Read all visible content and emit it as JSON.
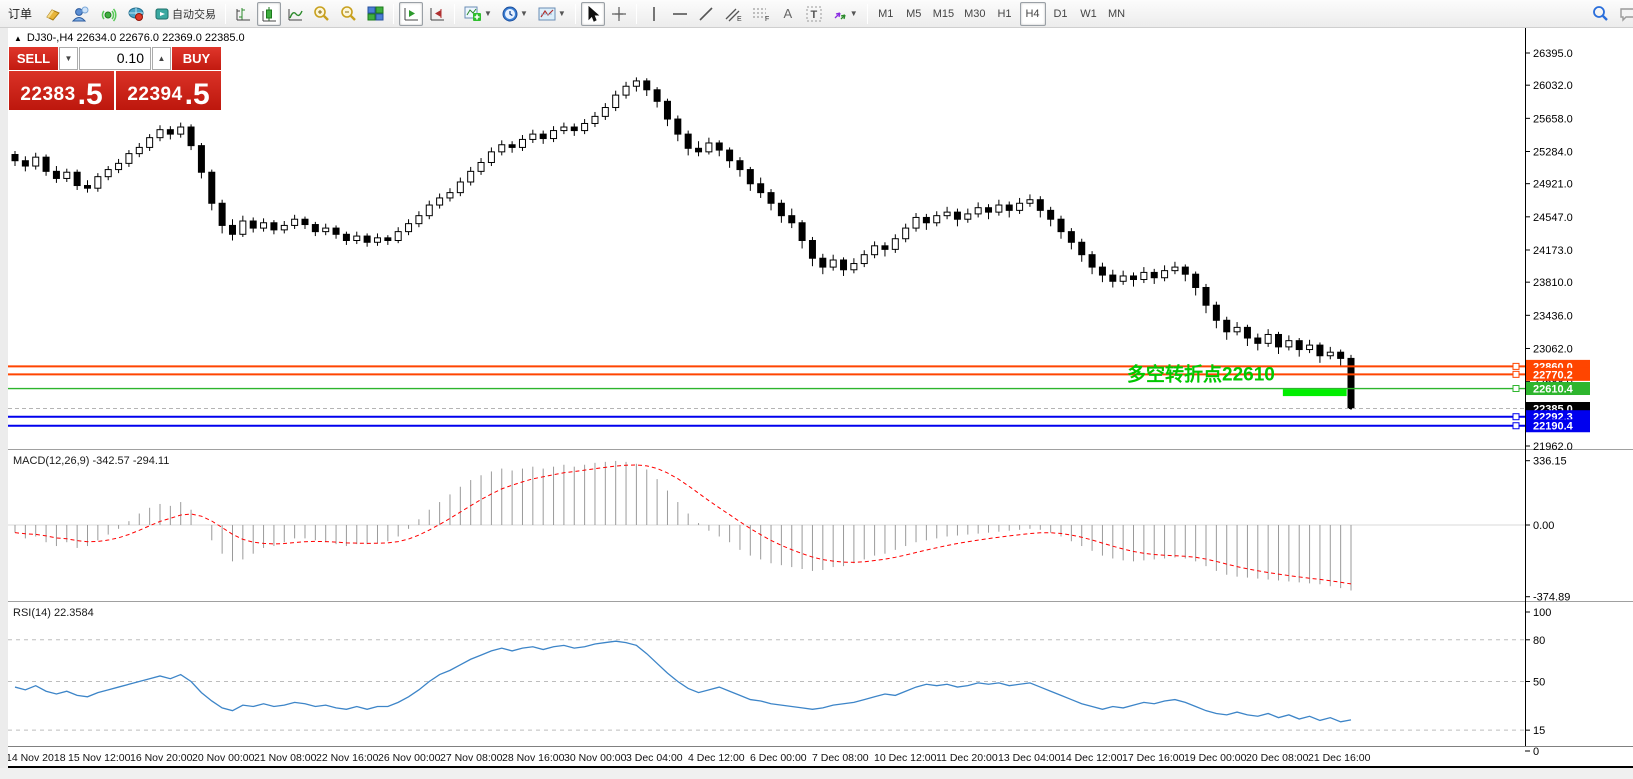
{
  "toolbar": {
    "order_label": "订单",
    "autotrading_label": "自动交易",
    "timeframes": [
      "M1",
      "M5",
      "M15",
      "M30",
      "H1",
      "H4",
      "D1",
      "W1",
      "MN"
    ],
    "active_timeframe": "H4"
  },
  "chart": {
    "header": "DJ30-,H4  22634.0 22676.0 22369.0 22385.0",
    "collapse_arrow": "▲"
  },
  "trade_panel": {
    "sell_label": "SELL",
    "buy_label": "BUY",
    "volume": "0.10",
    "spin_down": "▼",
    "spin_up": "▲",
    "sell_price_main": "22383",
    "sell_price_frac": ".5",
    "buy_price_main": "22394",
    "buy_price_frac": ".5"
  },
  "annotation": {
    "text": "多空转折点22610",
    "color": "#00c800"
  },
  "levels": [
    {
      "label": "22860.0",
      "value": 22860.0,
      "color": "#ff4500",
      "dash": null,
      "width": 2,
      "handle": true
    },
    {
      "label": "22770.2",
      "value": 22770.2,
      "color": "#ff4500",
      "dash": null,
      "width": 2,
      "handle": true
    },
    {
      "label": "22610.4",
      "value": 22610.4,
      "color": "#2db52d",
      "dash": null,
      "width": 1.4,
      "handle": true
    },
    {
      "label": "22385.0",
      "value": 22385.0,
      "color": "#000000",
      "dash": "4 3",
      "width": 1,
      "handle": false,
      "line_color": "#b4b4b4"
    },
    {
      "label": "22292.3",
      "value": 22292.3,
      "color": "#0000ee",
      "dash": null,
      "width": 2,
      "handle": true
    },
    {
      "label": "22190.4",
      "value": 22190.4,
      "color": "#0000ee",
      "dash": null,
      "width": 2,
      "handle": true
    }
  ],
  "highlight_segment": {
    "price": 22570,
    "from_bar": 123,
    "to_bar": 128,
    "color": "#00ee00"
  },
  "price_axis_ticks": [
    26395.0,
    26032.0,
    25658.0,
    25284.0,
    24921.0,
    24547.0,
    24173.0,
    23810.0,
    23436.0,
    23062.0,
    22688.0,
    22314.0,
    21962.0
  ],
  "macd_panel": {
    "label": "MACD(12,26,9) -342.57 -294.11",
    "axis_ticks": [
      336.15,
      0.0,
      -374.89
    ]
  },
  "rsi_panel": {
    "label": "RSI(14) 22.3584",
    "axis_ticks": [
      100,
      80,
      50,
      15,
      0
    ],
    "level_lines": [
      80,
      50,
      15
    ]
  },
  "time_axis": [
    "14 Nov 2018",
    "15 Nov 12:00",
    "16 Nov 20:00",
    "20 Nov 00:00",
    "21 Nov 08:00",
    "22 Nov 16:00",
    "26 Nov 00:00",
    "27 Nov 08:00",
    "28 Nov 16:00",
    "30 Nov 00:00",
    "3 Dec 04:00",
    "4 Dec 12:00",
    "6 Dec 00:00",
    "7 Dec 08:00",
    "10 Dec 12:00",
    "11 Dec 20:00",
    "13 Dec 04:00",
    "14 Dec 12:00",
    "17 Dec 16:00",
    "19 Dec 00:00",
    "20 Dec 08:00",
    "21 Dec 16:00"
  ],
  "chart_data": [
    {
      "type": "candlestick",
      "title": "DJ30- H4",
      "ylim": [
        21894,
        26654
      ],
      "yticks": [
        26395.0,
        26032.0,
        25658.0,
        25284.0,
        24921.0,
        24547.0,
        24173.0,
        23810.0,
        23436.0,
        23062.0,
        22688.0,
        22314.0,
        21962.0
      ],
      "x_labels": [
        "14 Nov 2018",
        "15 Nov 12:00",
        "16 Nov 20:00",
        "20 Nov 00:00",
        "21 Nov 08:00",
        "22 Nov 16:00",
        "26 Nov 00:00",
        "27 Nov 08:00",
        "28 Nov 16:00",
        "30 Nov 00:00",
        "3 Dec 04:00",
        "4 Dec 12:00",
        "6 Dec 00:00",
        "7 Dec 08:00",
        "10 Dec 12:00",
        "11 Dec 20:00",
        "13 Dec 04:00",
        "14 Dec 12:00",
        "17 Dec 16:00",
        "19 Dec 00:00",
        "20 Dec 08:00",
        "21 Dec 16:00"
      ],
      "ohlc": [
        [
          25250,
          25290,
          25120,
          25180
        ],
        [
          25180,
          25230,
          25060,
          25120
        ],
        [
          25120,
          25270,
          25080,
          25220
        ],
        [
          25220,
          25250,
          25010,
          25060
        ],
        [
          25060,
          25120,
          24930,
          24980
        ],
        [
          24980,
          25090,
          24940,
          25050
        ],
        [
          25050,
          25080,
          24850,
          24900
        ],
        [
          24900,
          24960,
          24820,
          24870
        ],
        [
          24870,
          25040,
          24830,
          25000
        ],
        [
          25000,
          25120,
          24960,
          25080
        ],
        [
          25080,
          25200,
          25040,
          25150
        ],
        [
          25150,
          25300,
          25110,
          25260
        ],
        [
          25260,
          25380,
          25220,
          25330
        ],
        [
          25330,
          25480,
          25290,
          25440
        ],
        [
          25440,
          25580,
          25400,
          25530
        ],
        [
          25530,
          25570,
          25420,
          25480
        ],
        [
          25480,
          25610,
          25440,
          25560
        ],
        [
          25560,
          25590,
          25300,
          25350
        ],
        [
          25350,
          25380,
          24980,
          25050
        ],
        [
          25050,
          25080,
          24620,
          24700
        ],
        [
          24700,
          24740,
          24360,
          24450
        ],
        [
          24450,
          24520,
          24280,
          24350
        ],
        [
          24350,
          24560,
          24320,
          24500
        ],
        [
          24500,
          24540,
          24370,
          24420
        ],
        [
          24420,
          24530,
          24380,
          24480
        ],
        [
          24480,
          24510,
          24350,
          24400
        ],
        [
          24400,
          24500,
          24360,
          24450
        ],
        [
          24450,
          24570,
          24410,
          24520
        ],
        [
          24520,
          24550,
          24410,
          24460
        ],
        [
          24460,
          24490,
          24330,
          24380
        ],
        [
          24380,
          24470,
          24340,
          24420
        ],
        [
          24420,
          24450,
          24300,
          24350
        ],
        [
          24350,
          24380,
          24230,
          24280
        ],
        [
          24280,
          24380,
          24240,
          24330
        ],
        [
          24330,
          24360,
          24210,
          24260
        ],
        [
          24260,
          24360,
          24220,
          24310
        ],
        [
          24310,
          24340,
          24230,
          24280
        ],
        [
          24280,
          24430,
          24250,
          24380
        ],
        [
          24380,
          24520,
          24340,
          24470
        ],
        [
          24470,
          24610,
          24430,
          24560
        ],
        [
          24560,
          24730,
          24520,
          24680
        ],
        [
          24680,
          24810,
          24640,
          24760
        ],
        [
          24760,
          24870,
          24720,
          24820
        ],
        [
          24820,
          24990,
          24780,
          24940
        ],
        [
          24940,
          25110,
          24900,
          25060
        ],
        [
          25060,
          25210,
          25020,
          25160
        ],
        [
          25160,
          25330,
          25120,
          25280
        ],
        [
          25280,
          25410,
          25240,
          25360
        ],
        [
          25360,
          25400,
          25270,
          25330
        ],
        [
          25330,
          25470,
          25290,
          25420
        ],
        [
          25420,
          25530,
          25380,
          25480
        ],
        [
          25480,
          25520,
          25370,
          25430
        ],
        [
          25430,
          25570,
          25390,
          25520
        ],
        [
          25520,
          25610,
          25480,
          25560
        ],
        [
          25560,
          25600,
          25460,
          25520
        ],
        [
          25520,
          25650,
          25480,
          25600
        ],
        [
          25600,
          25730,
          25560,
          25680
        ],
        [
          25680,
          25830,
          25640,
          25780
        ],
        [
          25780,
          25970,
          25740,
          25920
        ],
        [
          25920,
          26070,
          25880,
          26020
        ],
        [
          26020,
          26120,
          25960,
          26080
        ],
        [
          26080,
          26110,
          25910,
          25980
        ],
        [
          25980,
          26010,
          25780,
          25850
        ],
        [
          25850,
          25880,
          25570,
          25650
        ],
        [
          25650,
          25690,
          25400,
          25480
        ],
        [
          25480,
          25520,
          25240,
          25320
        ],
        [
          25320,
          25400,
          25230,
          25280
        ],
        [
          25280,
          25440,
          25250,
          25380
        ],
        [
          25380,
          25410,
          25230,
          25300
        ],
        [
          25300,
          25330,
          25100,
          25180
        ],
        [
          25180,
          25220,
          25000,
          25080
        ],
        [
          25080,
          25110,
          24840,
          24920
        ],
        [
          24920,
          24990,
          24760,
          24820
        ],
        [
          24820,
          24860,
          24620,
          24700
        ],
        [
          24700,
          24740,
          24480,
          24560
        ],
        [
          24560,
          24640,
          24420,
          24480
        ],
        [
          24480,
          24510,
          24190,
          24280
        ],
        [
          24280,
          24320,
          23990,
          24080
        ],
        [
          24080,
          24130,
          23900,
          23980
        ],
        [
          23980,
          24120,
          23940,
          24060
        ],
        [
          24060,
          24090,
          23880,
          23950
        ],
        [
          23950,
          24080,
          23910,
          24020
        ],
        [
          24020,
          24170,
          23980,
          24120
        ],
        [
          24120,
          24270,
          24080,
          24220
        ],
        [
          24220,
          24260,
          24100,
          24180
        ],
        [
          24180,
          24350,
          24140,
          24300
        ],
        [
          24300,
          24470,
          24260,
          24420
        ],
        [
          24420,
          24590,
          24380,
          24540
        ],
        [
          24540,
          24580,
          24400,
          24480
        ],
        [
          24480,
          24610,
          24440,
          24560
        ],
        [
          24560,
          24660,
          24520,
          24600
        ],
        [
          24600,
          24640,
          24440,
          24520
        ],
        [
          24520,
          24640,
          24480,
          24580
        ],
        [
          24580,
          24710,
          24540,
          24650
        ],
        [
          24650,
          24690,
          24520,
          24600
        ],
        [
          24600,
          24740,
          24560,
          24680
        ],
        [
          24680,
          24720,
          24540,
          24620
        ],
        [
          24620,
          24760,
          24580,
          24700
        ],
        [
          24700,
          24800,
          24660,
          24740
        ],
        [
          24740,
          24780,
          24540,
          24620
        ],
        [
          24620,
          24660,
          24440,
          24520
        ],
        [
          24520,
          24560,
          24300,
          24380
        ],
        [
          24380,
          24420,
          24180,
          24260
        ],
        [
          24260,
          24300,
          24040,
          24120
        ],
        [
          24120,
          24160,
          23900,
          23980
        ],
        [
          23980,
          24030,
          23810,
          23890
        ],
        [
          23890,
          23950,
          23750,
          23820
        ],
        [
          23820,
          23940,
          23780,
          23880
        ],
        [
          23880,
          23920,
          23760,
          23840
        ],
        [
          23840,
          23980,
          23800,
          23920
        ],
        [
          23920,
          23960,
          23790,
          23860
        ],
        [
          23860,
          24000,
          23820,
          23940
        ],
        [
          23940,
          24040,
          23900,
          23980
        ],
        [
          23980,
          24010,
          23820,
          23900
        ],
        [
          23900,
          23930,
          23660,
          23750
        ],
        [
          23750,
          23790,
          23460,
          23550
        ],
        [
          23550,
          23590,
          23290,
          23380
        ],
        [
          23380,
          23420,
          23160,
          23250
        ],
        [
          23250,
          23360,
          23210,
          23300
        ],
        [
          23300,
          23330,
          23090,
          23180
        ],
        [
          23180,
          23230,
          23040,
          23120
        ],
        [
          23120,
          23280,
          23080,
          23220
        ],
        [
          23220,
          23250,
          23000,
          23080
        ],
        [
          23080,
          23210,
          23040,
          23150
        ],
        [
          23150,
          23180,
          22970,
          23050
        ],
        [
          23050,
          23160,
          23010,
          23100
        ],
        [
          23100,
          23130,
          22900,
          22980
        ],
        [
          22980,
          23080,
          22940,
          23020
        ],
        [
          23020,
          23050,
          22870,
          22950
        ],
        [
          22950,
          22990,
          22369,
          22385
        ]
      ]
    },
    {
      "type": "bar",
      "name": "MACD(12,26,9)",
      "ylabel": "MACD",
      "ylim": [
        -374.89,
        336.15
      ],
      "current_macd": -342.57,
      "current_signal": -294.11,
      "signal_rule": "EMA9 of values",
      "values": [
        -40,
        -70,
        -60,
        -90,
        -110,
        -90,
        -120,
        -110,
        -80,
        -50,
        -20,
        20,
        60,
        90,
        110,
        100,
        120,
        80,
        0,
        -80,
        -150,
        -190,
        -180,
        -150,
        -120,
        -110,
        -90,
        -70,
        -70,
        -80,
        -90,
        -100,
        -110,
        -100,
        -100,
        -95,
        -85,
        -60,
        -20,
        30,
        80,
        120,
        160,
        200,
        235,
        260,
        280,
        295,
        285,
        295,
        305,
        295,
        305,
        315,
        305,
        315,
        325,
        330,
        335,
        330,
        320,
        290,
        240,
        180,
        120,
        60,
        10,
        -30,
        -60,
        -90,
        -130,
        -160,
        -180,
        -200,
        -210,
        -220,
        -230,
        -240,
        -235,
        -220,
        -215,
        -200,
        -180,
        -160,
        -150,
        -130,
        -110,
        -90,
        -80,
        -70,
        -60,
        -55,
        -50,
        -45,
        -40,
        -35,
        -30,
        -25,
        -20,
        -25,
        -40,
        -60,
        -85,
        -110,
        -135,
        -160,
        -175,
        -185,
        -190,
        -185,
        -180,
        -175,
        -170,
        -175,
        -190,
        -215,
        -240,
        -260,
        -270,
        -275,
        -280,
        -285,
        -290,
        -295,
        -300,
        -305,
        -310,
        -320,
        -330,
        -342.57
      ]
    },
    {
      "type": "line",
      "name": "RSI(14)",
      "ylim": [
        0,
        100
      ],
      "levels": [
        80,
        50,
        15
      ],
      "current": 22.3584,
      "values": [
        46,
        44,
        47,
        43,
        41,
        43,
        40,
        39,
        42,
        44,
        46,
        48,
        50,
        52,
        54,
        52,
        55,
        50,
        42,
        36,
        31,
        29,
        33,
        32,
        34,
        32,
        33,
        35,
        34,
        32,
        33,
        31,
        30,
        32,
        30,
        32,
        32,
        35,
        39,
        44,
        50,
        55,
        58,
        62,
        66,
        69,
        72,
        74,
        72,
        74,
        75,
        73,
        75,
        76,
        74,
        75,
        77,
        78,
        79,
        78,
        76,
        70,
        63,
        56,
        50,
        45,
        42,
        44,
        46,
        43,
        40,
        37,
        36,
        34,
        33,
        32,
        31,
        30,
        31,
        33,
        34,
        35,
        37,
        39,
        41,
        40,
        43,
        46,
        48,
        47,
        48,
        46,
        47,
        49,
        48,
        49,
        47,
        48,
        49,
        46,
        43,
        40,
        37,
        34,
        32,
        30,
        32,
        31,
        33,
        35,
        34,
        36,
        37,
        35,
        32,
        29,
        27,
        26,
        28,
        26,
        25,
        27,
        24,
        26,
        23,
        25,
        22,
        24,
        21,
        22.36
      ]
    }
  ]
}
